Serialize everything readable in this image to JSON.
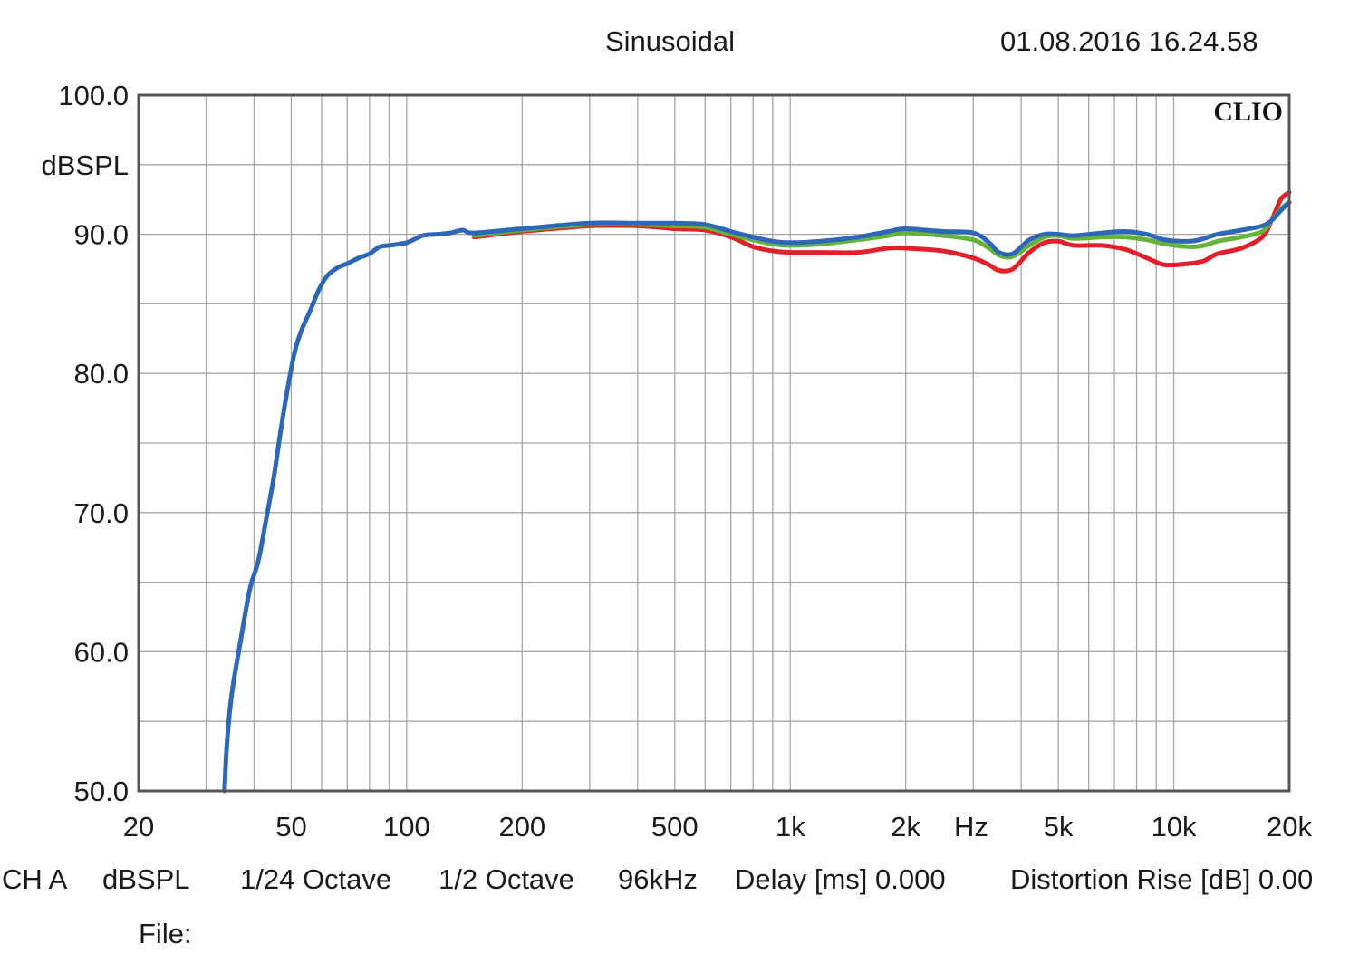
{
  "header": {
    "title": "Sinusoidal",
    "timestamp": "01.08.2016 16.24.58"
  },
  "footer": {
    "channel": "CH A",
    "unit": "dBSPL",
    "resolution": "1/24 Octave",
    "smoothing": "1/2 Octave",
    "sample_rate": "96kHz",
    "delay": "Delay [ms] 0.000",
    "distortion": "Distortion Rise [dB] 0.00",
    "file_label": "File:"
  },
  "chart_data": {
    "type": "line",
    "title": "Sinusoidal",
    "brand": "CLIO",
    "xlabel": "Hz",
    "ylabel": "dBSPL",
    "xscale": "log",
    "xlim": [
      20,
      20000
    ],
    "ylim": [
      50,
      100
    ],
    "grid": true,
    "xticks": [
      {
        "value": 20,
        "label": "20"
      },
      {
        "value": 50,
        "label": "50"
      },
      {
        "value": 100,
        "label": "100"
      },
      {
        "value": 200,
        "label": "200"
      },
      {
        "value": 500,
        "label": "500"
      },
      {
        "value": 1000,
        "label": "1k"
      },
      {
        "value": 2000,
        "label": "2k"
      },
      {
        "value": 5000,
        "label": "5k"
      },
      {
        "value": 10000,
        "label": "10k"
      },
      {
        "value": 20000,
        "label": "20k"
      }
    ],
    "yticks": [
      {
        "value": 100,
        "label": "100.0"
      },
      {
        "value": 90,
        "label": "90.0"
      },
      {
        "value": 80,
        "label": "80.0"
      },
      {
        "value": 70,
        "label": "70.0"
      },
      {
        "value": 60,
        "label": "60.0"
      },
      {
        "value": 50,
        "label": "50.0"
      }
    ],
    "series": [
      {
        "name": "red",
        "color": "#e0202a",
        "points": [
          [
            150,
            89.8
          ],
          [
            200,
            90.2
          ],
          [
            300,
            90.6
          ],
          [
            400,
            90.6
          ],
          [
            500,
            90.4
          ],
          [
            600,
            90.3
          ],
          [
            700,
            89.8
          ],
          [
            800,
            89.1
          ],
          [
            900,
            88.8
          ],
          [
            1000,
            88.7
          ],
          [
            1200,
            88.7
          ],
          [
            1500,
            88.7
          ],
          [
            1800,
            89.0
          ],
          [
            2000,
            89.0
          ],
          [
            2500,
            88.8
          ],
          [
            3000,
            88.3
          ],
          [
            3300,
            87.8
          ],
          [
            3500,
            87.4
          ],
          [
            3800,
            87.5
          ],
          [
            4200,
            88.7
          ],
          [
            4600,
            89.4
          ],
          [
            5000,
            89.5
          ],
          [
            5500,
            89.2
          ],
          [
            6500,
            89.2
          ],
          [
            7500,
            88.9
          ],
          [
            8500,
            88.3
          ],
          [
            9500,
            87.8
          ],
          [
            11000,
            87.9
          ],
          [
            12000,
            88.1
          ],
          [
            13000,
            88.6
          ],
          [
            15000,
            89.0
          ],
          [
            17000,
            89.8
          ],
          [
            18000,
            91.0
          ],
          [
            19000,
            92.5
          ],
          [
            20000,
            93.0
          ]
        ]
      },
      {
        "name": "green",
        "color": "#64b43c",
        "points": [
          [
            150,
            89.9
          ],
          [
            200,
            90.3
          ],
          [
            300,
            90.7
          ],
          [
            400,
            90.7
          ],
          [
            500,
            90.6
          ],
          [
            600,
            90.5
          ],
          [
            700,
            90.0
          ],
          [
            800,
            89.6
          ],
          [
            900,
            89.3
          ],
          [
            1000,
            89.2
          ],
          [
            1200,
            89.3
          ],
          [
            1500,
            89.6
          ],
          [
            1800,
            89.9
          ],
          [
            2000,
            90.1
          ],
          [
            2500,
            89.9
          ],
          [
            3000,
            89.6
          ],
          [
            3300,
            89.0
          ],
          [
            3500,
            88.5
          ],
          [
            3800,
            88.4
          ],
          [
            4200,
            89.2
          ],
          [
            4600,
            89.8
          ],
          [
            5000,
            89.9
          ],
          [
            5500,
            89.7
          ],
          [
            6500,
            89.8
          ],
          [
            7500,
            89.8
          ],
          [
            8500,
            89.6
          ],
          [
            9500,
            89.3
          ],
          [
            11000,
            89.1
          ],
          [
            12000,
            89.2
          ],
          [
            13000,
            89.5
          ],
          [
            15000,
            89.8
          ],
          [
            17000,
            90.2
          ],
          [
            18000,
            91.0
          ],
          [
            19000,
            91.8
          ],
          [
            20000,
            92.3
          ]
        ]
      },
      {
        "name": "blue",
        "color": "#2e67b8",
        "points": [
          [
            33.5,
            50.0
          ],
          [
            34,
            53.5
          ],
          [
            35,
            57.0
          ],
          [
            37,
            61.0
          ],
          [
            39,
            64.5
          ],
          [
            41,
            66.5
          ],
          [
            43,
            69.5
          ],
          [
            45,
            72.5
          ],
          [
            47,
            76.0
          ],
          [
            49,
            79.0
          ],
          [
            51,
            81.5
          ],
          [
            53,
            83.0
          ],
          [
            56,
            84.5
          ],
          [
            59,
            86.0
          ],
          [
            62,
            87.0
          ],
          [
            66,
            87.6
          ],
          [
            70,
            87.9
          ],
          [
            75,
            88.3
          ],
          [
            80,
            88.6
          ],
          [
            85,
            89.1
          ],
          [
            90,
            89.2
          ],
          [
            100,
            89.4
          ],
          [
            110,
            89.9
          ],
          [
            120,
            90.0
          ],
          [
            130,
            90.1
          ],
          [
            140,
            90.3
          ],
          [
            150,
            90.1
          ],
          [
            200,
            90.4
          ],
          [
            300,
            90.8
          ],
          [
            400,
            90.8
          ],
          [
            500,
            90.8
          ],
          [
            600,
            90.7
          ],
          [
            700,
            90.2
          ],
          [
            800,
            89.8
          ],
          [
            900,
            89.5
          ],
          [
            1000,
            89.4
          ],
          [
            1200,
            89.5
          ],
          [
            1500,
            89.8
          ],
          [
            1800,
            90.2
          ],
          [
            2000,
            90.4
          ],
          [
            2500,
            90.2
          ],
          [
            3000,
            90.1
          ],
          [
            3300,
            89.4
          ],
          [
            3500,
            88.7
          ],
          [
            3800,
            88.6
          ],
          [
            4200,
            89.6
          ],
          [
            4600,
            90.0
          ],
          [
            5000,
            90.0
          ],
          [
            5500,
            89.9
          ],
          [
            6500,
            90.1
          ],
          [
            7500,
            90.2
          ],
          [
            8500,
            90.0
          ],
          [
            9500,
            89.6
          ],
          [
            11000,
            89.5
          ],
          [
            12000,
            89.7
          ],
          [
            13000,
            90.0
          ],
          [
            15000,
            90.3
          ],
          [
            17000,
            90.6
          ],
          [
            18000,
            91.0
          ],
          [
            19000,
            91.7
          ],
          [
            20000,
            92.3
          ]
        ]
      }
    ]
  }
}
